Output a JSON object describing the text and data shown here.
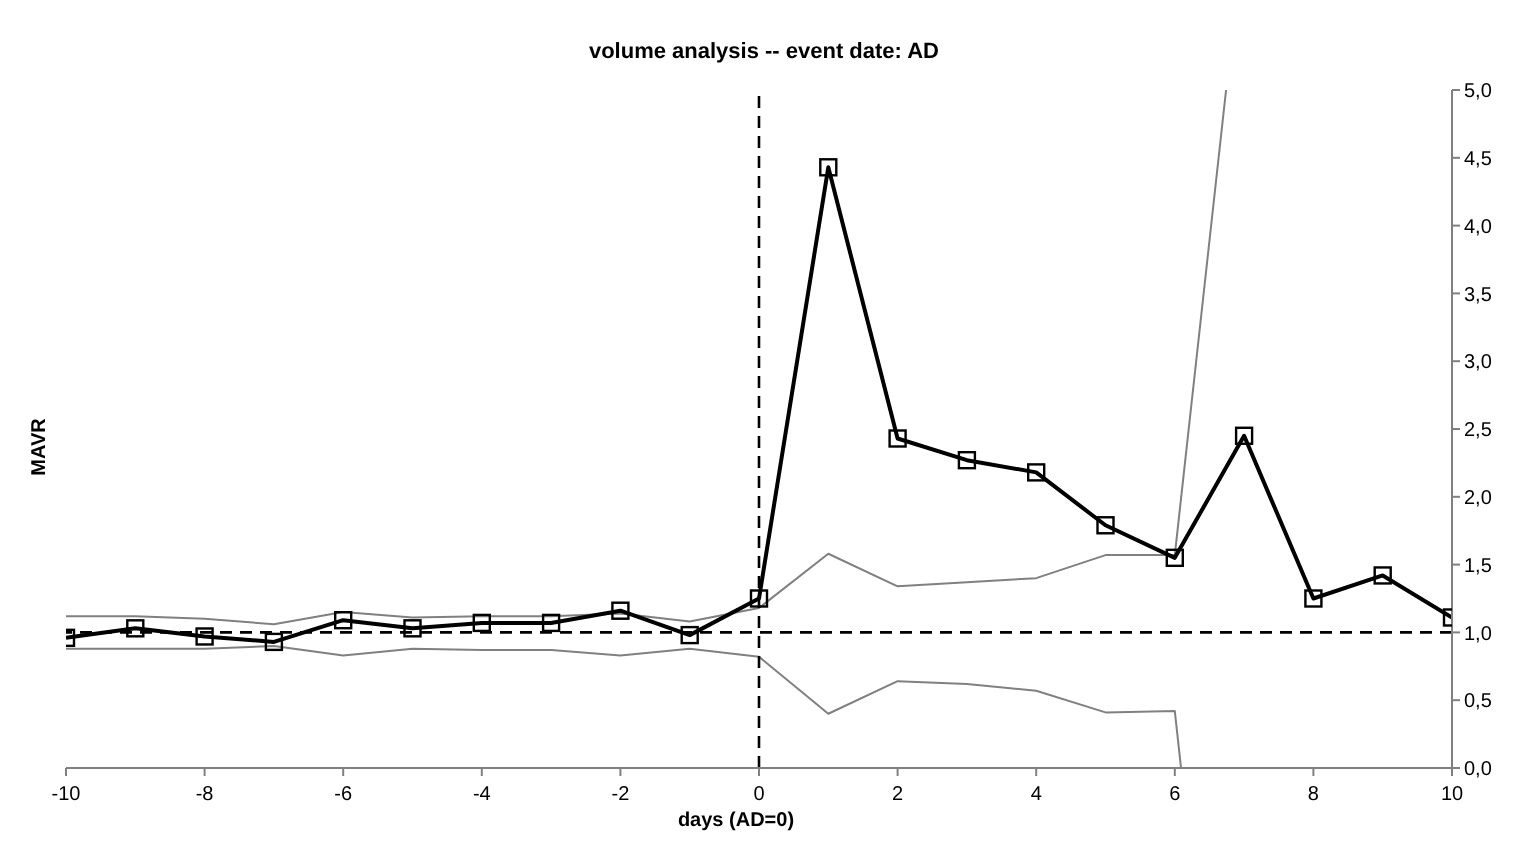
{
  "chart_data": {
    "type": "line",
    "title": "volume analysis -- event date: AD",
    "xlabel": "days (AD=0)",
    "ylabel": "MAVR",
    "xlim": [
      -10,
      10
    ],
    "xticks": [
      -10,
      -8,
      -6,
      -4,
      -2,
      0,
      2,
      4,
      6,
      8,
      10
    ],
    "ylim": [
      0,
      5
    ],
    "yticks": [
      {
        "value": 0,
        "label": "0,0"
      },
      {
        "value": 0.5,
        "label": "0,5"
      },
      {
        "value": 1,
        "label": "1,0"
      },
      {
        "value": 1.5,
        "label": "1,5"
      },
      {
        "value": 2,
        "label": "2,0"
      },
      {
        "value": 2.5,
        "label": "2,5"
      },
      {
        "value": 3,
        "label": "3,0"
      },
      {
        "value": 3.5,
        "label": "3,5"
      },
      {
        "value": 4,
        "label": "4,0"
      },
      {
        "value": 4.5,
        "label": "4,5"
      },
      {
        "value": 5,
        "label": "5,0"
      }
    ],
    "grid": false,
    "legend": false,
    "ref_lines": [
      {
        "axis": "y",
        "value": 1,
        "line_style": "dashed",
        "color": "#000000"
      },
      {
        "axis": "x",
        "value": 0,
        "line_style": "dashed",
        "color": "#000000"
      }
    ],
    "series": [
      {
        "color": "#808080",
        "marker": "none",
        "x": [
          -10,
          -9,
          -8,
          -7,
          -6,
          -5,
          -4,
          -3,
          -2,
          -1,
          0,
          1,
          2,
          3,
          4,
          5,
          6,
          6.74
        ],
        "values": [
          1.12,
          1.12,
          1.1,
          1.06,
          1.15,
          1.11,
          1.12,
          1.12,
          1.14,
          1.08,
          1.18,
          1.58,
          1.34,
          1.37,
          1.4,
          1.57,
          1.57,
          5
        ]
      },
      {
        "color": "#808080",
        "marker": "none",
        "x": [
          -10,
          -9,
          -8,
          -7,
          -6,
          -5,
          -4,
          -3,
          -2,
          -1,
          0,
          1,
          2,
          3,
          4,
          5,
          6,
          6.09
        ],
        "values": [
          0.88,
          0.88,
          0.88,
          0.9,
          0.83,
          0.88,
          0.87,
          0.87,
          0.83,
          0.88,
          0.82,
          0.4,
          0.64,
          0.62,
          0.57,
          0.41,
          0.42,
          0
        ]
      },
      {
        "color": "#000000",
        "marker": "square",
        "x": [
          -10,
          -9,
          -8,
          -7,
          -6,
          -5,
          -4,
          -3,
          -2,
          -1,
          0,
          1,
          2,
          3,
          4,
          5,
          6,
          7,
          8,
          9,
          10
        ],
        "values": [
          0.96,
          1.03,
          0.97,
          0.93,
          1.09,
          1.03,
          1.07,
          1.07,
          1.16,
          0.98,
          1.25,
          4.43,
          2.43,
          2.27,
          2.18,
          1.79,
          1.55,
          2.45,
          1.25,
          1.42,
          1.11
        ]
      }
    ]
  }
}
